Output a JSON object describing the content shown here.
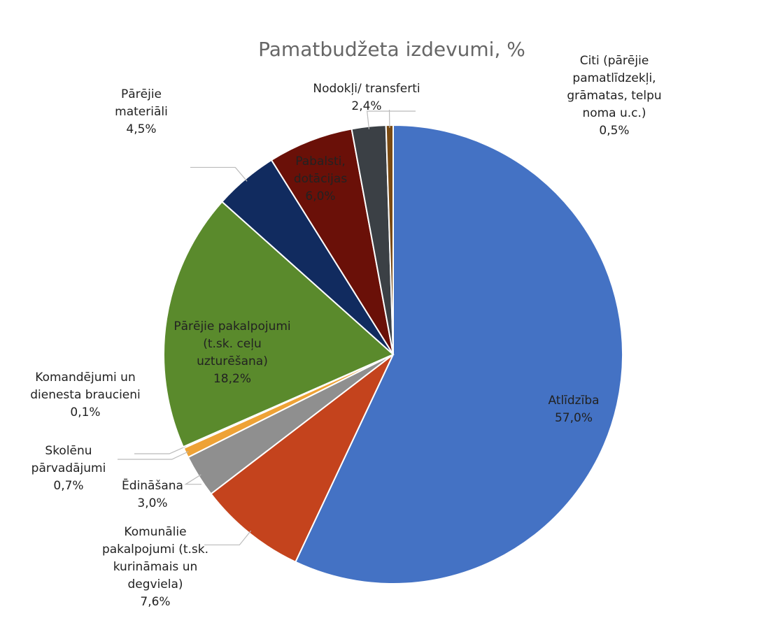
{
  "chart_data": {
    "type": "pie",
    "title": "Pamatbudžeta izdevumi, %",
    "categories": [
      "Atlīdzība",
      "Komunālie pakalpojumi (t.sk. kurināmais un degviela)",
      "Ēdināšana",
      "Skolēnu pārvadājumi",
      "Komandējumi un dienesta braucieni",
      "Pārējie pakalpojumi (t.sk. ceļu uzturēšana)",
      "Pārējie materiāli",
      "Pabalsti, dotācijas",
      "Nodokļi/ transferti",
      "Citi (pārējie pamatlīdzekļi, grāmatas, telpu noma u.c.)"
    ],
    "values": [
      57.0,
      7.6,
      3.0,
      0.7,
      0.1,
      18.2,
      4.5,
      6.0,
      2.4,
      0.5
    ],
    "value_labels": [
      "57,0%",
      "7,6%",
      "3,0%",
      "0,7%",
      "0,1%",
      "18,2%",
      "4,5%",
      "6,0%",
      "2,4%",
      "0,5%"
    ],
    "colors": [
      "#4472c4",
      "#c4431d",
      "#8f8f8f",
      "#eea236",
      "#d9d9d9",
      "#5a8a2c",
      "#112b5f",
      "#6a1008",
      "#3b4045",
      "#7a4a12"
    ]
  }
}
